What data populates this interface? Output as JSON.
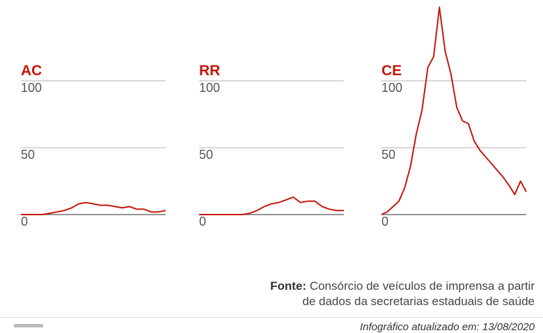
{
  "chart_data": [
    {
      "type": "line",
      "title": "AC",
      "yticks": [
        0,
        50,
        100
      ],
      "ylim": [
        0,
        100
      ],
      "x": [
        0,
        5,
        10,
        15,
        20,
        25,
        30,
        35,
        40,
        45,
        50,
        55,
        60,
        65,
        70,
        75,
        80,
        85,
        90,
        95,
        100
      ],
      "series": [
        {
          "values": [
            0,
            0,
            0,
            0,
            1,
            2,
            3,
            5,
            8,
            9,
            8,
            7,
            7,
            6,
            5,
            6,
            4,
            4,
            2,
            2,
            3
          ]
        }
      ]
    },
    {
      "type": "line",
      "title": "RR",
      "yticks": [
        0,
        50,
        100
      ],
      "ylim": [
        0,
        100
      ],
      "x": [
        0,
        5,
        10,
        15,
        20,
        25,
        30,
        35,
        40,
        45,
        50,
        55,
        60,
        65,
        70,
        75,
        80,
        85,
        90,
        95,
        100
      ],
      "series": [
        {
          "values": [
            0,
            0,
            0,
            0,
            0,
            0,
            0,
            1,
            3,
            6,
            8,
            9,
            11,
            13,
            9,
            10,
            10,
            6,
            4,
            3,
            3
          ]
        }
      ]
    },
    {
      "type": "line",
      "title": "CE",
      "yticks": [
        0,
        50,
        100
      ],
      "ylim": [
        0,
        100
      ],
      "x": [
        0,
        4,
        8,
        12,
        16,
        20,
        24,
        28,
        32,
        36,
        40,
        44,
        48,
        52,
        56,
        60,
        64,
        68,
        72,
        76,
        80,
        84,
        88,
        92,
        96,
        100
      ],
      "series": [
        {
          "values": [
            0,
            2,
            6,
            10,
            20,
            36,
            60,
            78,
            110,
            118,
            155,
            122,
            105,
            80,
            70,
            68,
            55,
            48,
            43,
            38,
            33,
            28,
            22,
            15,
            25,
            17
          ]
        }
      ]
    }
  ],
  "source": {
    "label": "Fonte:",
    "line1": "Consórcio de veículos de imprensa a partir",
    "line2": "de dados da secretarias estaduais de saúde"
  },
  "footer": {
    "credit": "Infográfico atualizado em: 13/08/2020"
  },
  "colors": {
    "line": "#c4170c",
    "grid": "#b0b0b0",
    "baseline": "#555555"
  }
}
